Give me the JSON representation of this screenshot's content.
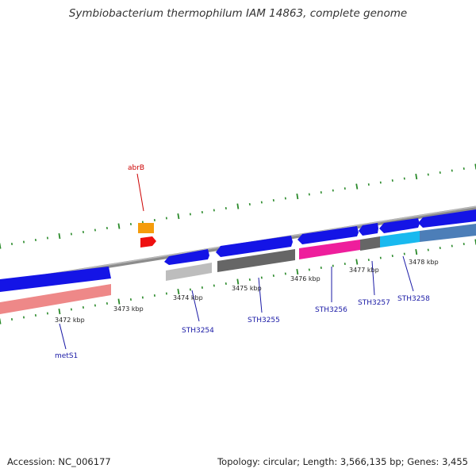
{
  "title": "Symbiobacterium thermophilum IAM 14863, complete genome",
  "colors": {
    "blue": "#1414e6",
    "pink": "#ee8888",
    "gray_dark": "#666666",
    "gray_light": "#bdbdbd",
    "magenta": "#ee1e9c",
    "cyan": "#19b9ef",
    "steel": "#4c7eb8",
    "orange": "#f59c0c",
    "red": "#ee1010",
    "tick": "#2a8a2a",
    "genome_line": "#8c8c8c"
  },
  "ticks": [
    "3472 kbp",
    "3473 kbp",
    "3474 kbp",
    "3475 kbp",
    "3476 kbp",
    "3477 kbp",
    "3478 kbp"
  ],
  "genes": [
    {
      "label": "abrB",
      "color": "red"
    },
    {
      "label": "metS1",
      "color": "blue"
    },
    {
      "label": "STH3254",
      "color": "blue"
    },
    {
      "label": "STH3255",
      "color": "blue"
    },
    {
      "label": "STH3256",
      "color": "blue"
    },
    {
      "label": "STH3257",
      "color": "blue"
    },
    {
      "label": "STH3258",
      "color": "blue"
    }
  ],
  "footer": {
    "accession": "Accession: NC_006177",
    "stats": "Topology: circular; Length: 3,566,135 bp; Genes: 3,455"
  }
}
